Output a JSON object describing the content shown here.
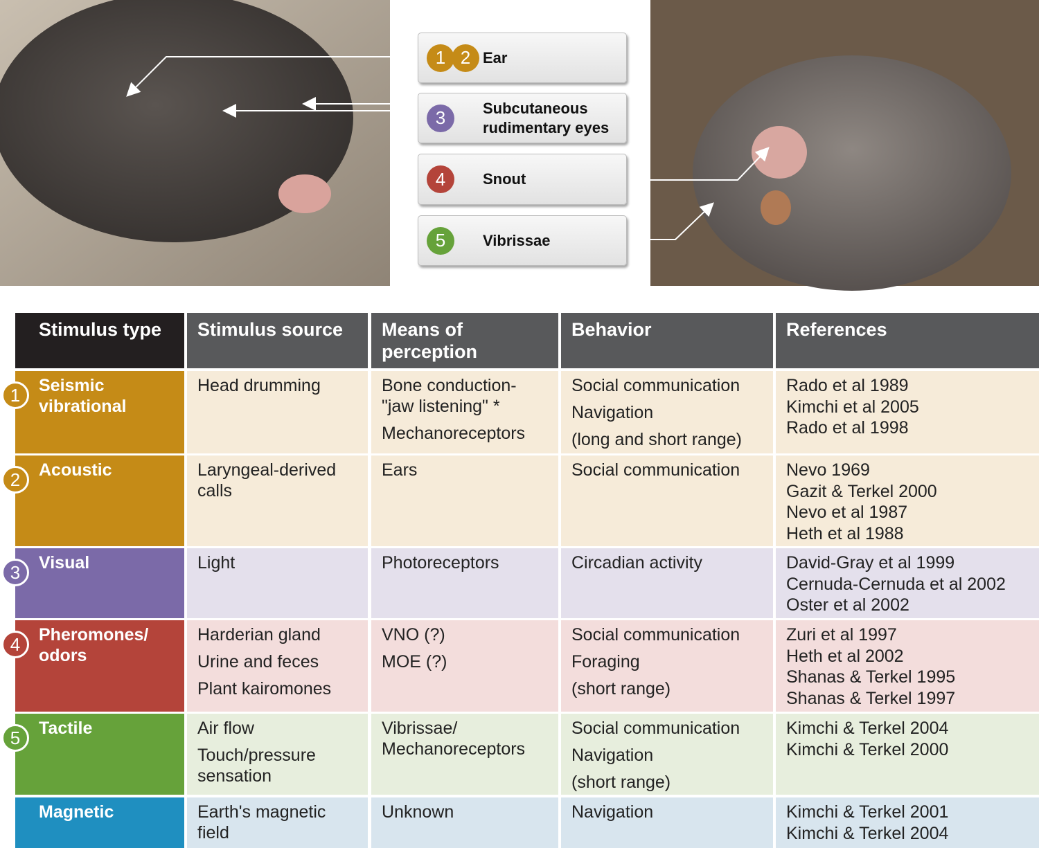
{
  "callouts": [
    {
      "numbers": [
        "1",
        "2"
      ],
      "colors": [
        "#c58b17",
        "#c58b17"
      ],
      "lines": [
        "Ear"
      ]
    },
    {
      "numbers": [
        "3"
      ],
      "colors": [
        "#7b6aa8"
      ],
      "lines": [
        "Subcutaneous",
        "rudimentary eyes"
      ]
    },
    {
      "numbers": [
        "4"
      ],
      "colors": [
        "#b4443a"
      ],
      "lines": [
        "Snout"
      ]
    },
    {
      "numbers": [
        "5"
      ],
      "colors": [
        "#66a23a"
      ],
      "lines": [
        "Vibrissae"
      ]
    }
  ],
  "table": {
    "header": [
      "Stimulus type",
      "Stimulus source",
      "Means of perception",
      "Behavior",
      "References"
    ],
    "rows": [
      {
        "number": "1",
        "type": "Seismic vibrational",
        "color": "#c58b17",
        "tint": "#f6ebd9",
        "source": [
          "Head drumming"
        ],
        "means": [
          "Bone conduction- \"jaw listening\" *",
          "Mechanoreceptors"
        ],
        "behavior": [
          "Social communication",
          "Navigation",
          "(long and short range)"
        ],
        "references": [
          "Rado et al 1989",
          "Kimchi et al 2005",
          "Rado et al 1998"
        ]
      },
      {
        "number": "2",
        "type": "Acoustic",
        "color": "#c58b17",
        "tint": "#f6ebd9",
        "source": [
          "Laryngeal-derived calls"
        ],
        "means": [
          "Ears"
        ],
        "behavior": [
          "Social communication"
        ],
        "references": [
          "Nevo 1969",
          "Gazit & Terkel 2000",
          "Nevo et al 1987",
          "Heth et al 1988"
        ]
      },
      {
        "number": "3",
        "type": "Visual",
        "color": "#7b6aa8",
        "tint": "#e4e0ec",
        "source": [
          "Light"
        ],
        "means": [
          "Photoreceptors"
        ],
        "behavior": [
          "Circadian activity"
        ],
        "references": [
          "David-Gray et al 1999",
          "Cernuda-Cernuda et al 2002",
          "Oster et al 2002"
        ]
      },
      {
        "number": "4",
        "type": "Pheromones/ odors",
        "color": "#b4443a",
        "tint": "#f3dddc",
        "source": [
          "Harderian gland",
          "Urine and feces",
          "Plant kairomones"
        ],
        "means": [
          "VNO (?)",
          "MOE (?)"
        ],
        "behavior": [
          "Social communication",
          "Foraging",
          "(short range)"
        ],
        "references": [
          "Zuri et al 1997",
          "Heth et al 2002",
          "Shanas & Terkel 1995",
          "Shanas & Terkel 1997"
        ]
      },
      {
        "number": "5",
        "type": "Tactile",
        "color": "#66a23a",
        "tint": "#e7eedd",
        "source": [
          "Air flow",
          "Touch/pressure sensation"
        ],
        "means": [
          "Vibrissae/ Mechanoreceptors"
        ],
        "behavior": [
          "Social communication",
          "Navigation",
          "(short range)"
        ],
        "references": [
          "Kimchi & Terkel 2004",
          "Kimchi & Terkel 2000"
        ]
      },
      {
        "type": "Magnetic",
        "color": "#1f8fc0",
        "tint": "#d8e5ee",
        "source": [
          "Earth's magnetic field"
        ],
        "means": [
          "Unknown"
        ],
        "behavior": [
          "Navigation"
        ],
        "references": [
          "Kimchi & Terkel 2001",
          "Kimchi & Terkel 2004"
        ]
      }
    ]
  }
}
